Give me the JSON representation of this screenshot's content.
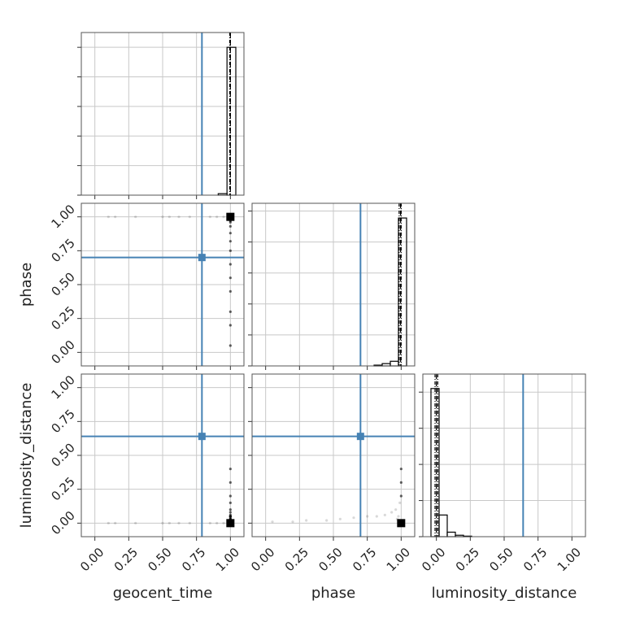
{
  "chart_data": {
    "type": "corner",
    "parameters": [
      "geocent_time",
      "phase",
      "luminosity_distance"
    ],
    "xlim": [
      -0.1,
      1.1
    ],
    "ticks": [
      {
        "value": 0,
        "label": "0.00"
      },
      {
        "value": 0.25,
        "label": "0.25"
      },
      {
        "value": 0.5,
        "label": "0.50"
      },
      {
        "value": 0.75,
        "label": "0.75"
      },
      {
        "value": 1,
        "label": "1.00"
      }
    ],
    "grid": true,
    "truths": [
      0.79,
      0.7,
      0.64
    ],
    "truth_color": "#4682b4",
    "max_point": [
      1.0,
      1.0,
      0.0
    ],
    "samples": [
      [
        0.1,
        1,
        0
      ],
      [
        0.15,
        1,
        0
      ],
      [
        0.3,
        1,
        0
      ],
      [
        0.5,
        1,
        0
      ],
      [
        0.55,
        1,
        0
      ],
      [
        0.62,
        1,
        0
      ],
      [
        0.7,
        1,
        0
      ],
      [
        0.85,
        1,
        0
      ],
      [
        0.9,
        1,
        0
      ],
      [
        0.95,
        1,
        0
      ],
      [
        1,
        0.05,
        0.01
      ],
      [
        1,
        0.2,
        0.01
      ],
      [
        1,
        0.3,
        0.02
      ],
      [
        1,
        0.45,
        0.02
      ],
      [
        1,
        0.55,
        0.03
      ],
      [
        1,
        0.65,
        0.04
      ],
      [
        1,
        0.75,
        0.05
      ],
      [
        1,
        0.82,
        0.05
      ],
      [
        1,
        0.88,
        0.06
      ],
      [
        1,
        0.93,
        0.08
      ],
      [
        1,
        0.96,
        0.1
      ],
      [
        1,
        0.97,
        0.03
      ],
      [
        1,
        0.98,
        0.05
      ],
      [
        1,
        0.99,
        0.15
      ],
      [
        1,
        1,
        0.2
      ],
      [
        1,
        1,
        0.3
      ],
      [
        1,
        1,
        0.4
      ]
    ],
    "histograms": [
      {
        "bins": [
          0.91,
          0.975,
          1.04
        ],
        "counts": [
          0.01,
          1.0
        ],
        "ylim": [
          0,
          1.1
        ],
        "yticks": [
          0,
          0.2,
          0.4,
          0.6,
          0.8,
          1.0
        ],
        "quantiles": [
          0.995,
          1.0,
          1.0
        ]
      },
      {
        "bins": [
          0.8,
          0.86,
          0.92,
          0.98,
          1.04
        ],
        "counts": [
          0.005,
          0.015,
          0.03,
          0.955
        ],
        "ylim": [
          0,
          1.05
        ],
        "yticks": [
          0,
          0.2,
          0.4,
          0.6,
          0.8,
          1.0
        ],
        "quantiles": [
          0.985,
          0.995,
          1.0
        ]
      },
      {
        "bins": [
          -0.04,
          0.02,
          0.08,
          0.14,
          0.2,
          0.26
        ],
        "counts": [
          0.82,
          0.12,
          0.025,
          0.008,
          0.003
        ],
        "ylim": [
          0,
          0.9
        ],
        "yticks": [
          0,
          0.2,
          0.4,
          0.6,
          0.8
        ],
        "quantiles": [
          -0.01,
          0.0,
          0.01
        ]
      }
    ]
  }
}
